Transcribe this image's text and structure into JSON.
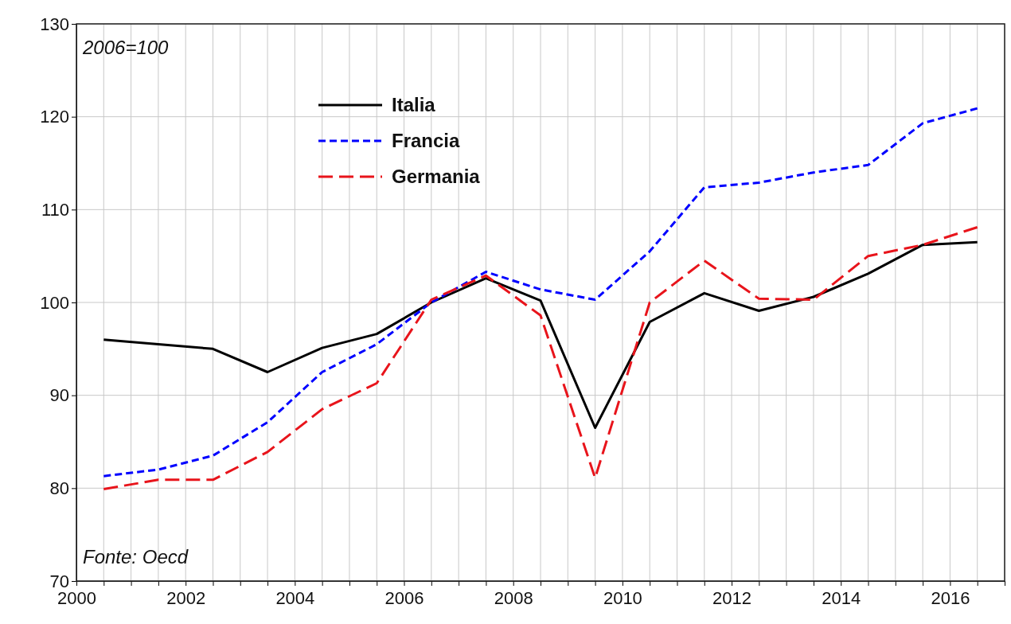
{
  "chart_data": {
    "type": "line",
    "x": [
      2000.5,
      2001.5,
      2002.5,
      2003.5,
      2004.5,
      2005.5,
      2006.5,
      2007.5,
      2008.5,
      2009.5,
      2010.5,
      2011.5,
      2012.5,
      2013.5,
      2014.5,
      2015.5,
      2016.5
    ],
    "series": [
      {
        "name": "Italia",
        "color": "#000000",
        "line_style": "solid",
        "values": [
          96.0,
          95.5,
          95.0,
          92.5,
          95.1,
          96.6,
          100.0,
          102.6,
          100.2,
          86.5,
          97.9,
          101.0,
          99.1,
          100.6,
          103.1,
          106.2,
          106.5
        ]
      },
      {
        "name": "Francia",
        "color": "#0000ff",
        "line_style": "dashed",
        "values": [
          81.3,
          82.0,
          83.5,
          87.1,
          92.5,
          95.5,
          100.0,
          103.3,
          101.4,
          100.3,
          105.5,
          112.4,
          112.9,
          114.0,
          114.8,
          119.3,
          120.9
        ]
      },
      {
        "name": "Germania",
        "color": "#e8141b",
        "line_style": "dashed",
        "values": [
          79.9,
          80.9,
          80.9,
          83.9,
          88.5,
          91.3,
          100.3,
          102.9,
          98.6,
          81.1,
          100.0,
          104.5,
          100.4,
          100.3,
          105.0,
          106.2,
          108.1
        ]
      }
    ],
    "xlim": [
      2000,
      2017
    ],
    "xticks": [
      {
        "value": 2000,
        "label": "2000"
      },
      {
        "value": 2000.5,
        "label": null
      },
      {
        "value": 2001,
        "label": null
      },
      {
        "value": 2001.5,
        "label": null
      },
      {
        "value": 2002,
        "label": "2002"
      },
      {
        "value": 2002.5,
        "label": null
      },
      {
        "value": 2003,
        "label": null
      },
      {
        "value": 2003.5,
        "label": null
      },
      {
        "value": 2004,
        "label": "2004"
      },
      {
        "value": 2004.5,
        "label": null
      },
      {
        "value": 2005,
        "label": null
      },
      {
        "value": 2005.5,
        "label": null
      },
      {
        "value": 2006,
        "label": "2006"
      },
      {
        "value": 2006.5,
        "label": null
      },
      {
        "value": 2007,
        "label": null
      },
      {
        "value": 2007.5,
        "label": null
      },
      {
        "value": 2008,
        "label": "2008"
      },
      {
        "value": 2008.5,
        "label": null
      },
      {
        "value": 2009,
        "label": null
      },
      {
        "value": 2009.5,
        "label": null
      },
      {
        "value": 2010,
        "label": "2010"
      },
      {
        "value": 2010.5,
        "label": null
      },
      {
        "value": 2011,
        "label": null
      },
      {
        "value": 2011.5,
        "label": null
      },
      {
        "value": 2012,
        "label": "2012"
      },
      {
        "value": 2012.5,
        "label": null
      },
      {
        "value": 2013,
        "label": null
      },
      {
        "value": 2013.5,
        "label": null
      },
      {
        "value": 2014,
        "label": "2014"
      },
      {
        "value": 2014.5,
        "label": null
      },
      {
        "value": 2015,
        "label": null
      },
      {
        "value": 2015.5,
        "label": null
      },
      {
        "value": 2016,
        "label": "2016"
      },
      {
        "value": 2016.5,
        "label": null
      },
      {
        "value": 2017,
        "label": null
      }
    ],
    "ylim": [
      70,
      130
    ],
    "yticks": [
      70,
      80,
      90,
      100,
      110,
      120,
      130
    ],
    "grid": true,
    "legend": "top left",
    "annotations": [
      "2006=100",
      "Fonte: Oecd"
    ]
  }
}
